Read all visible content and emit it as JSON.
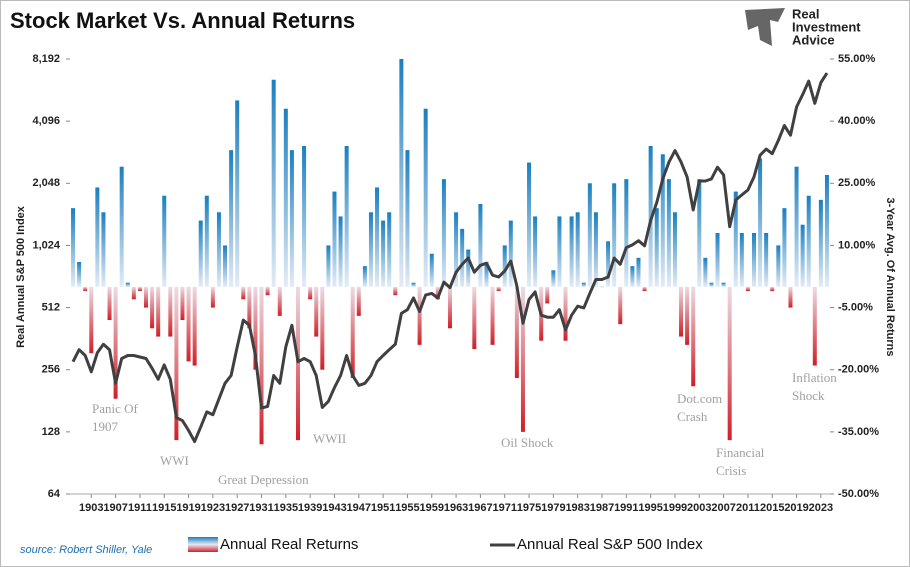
{
  "chart_data": {
    "type": "combo",
    "title": "Stock Market Vs. Annual Returns",
    "source": "source: Robert Shiller, Yale",
    "logo": [
      "Real",
      "Investment",
      "Advice"
    ],
    "y_label": "Real Annual S&P 500 Index",
    "y2_label": "3-Year Avg. Of Annual Returns",
    "x": [
      1900,
      1901,
      1902,
      1903,
      1904,
      1905,
      1906,
      1907,
      1908,
      1909,
      1910,
      1911,
      1912,
      1913,
      1914,
      1915,
      1916,
      1917,
      1918,
      1919,
      1920,
      1921,
      1922,
      1923,
      1924,
      1925,
      1926,
      1927,
      1928,
      1929,
      1930,
      1931,
      1932,
      1933,
      1934,
      1935,
      1936,
      1937,
      1938,
      1939,
      1940,
      1941,
      1942,
      1943,
      1944,
      1945,
      1946,
      1947,
      1948,
      1949,
      1950,
      1951,
      1952,
      1953,
      1954,
      1955,
      1956,
      1957,
      1958,
      1959,
      1960,
      1961,
      1962,
      1963,
      1964,
      1965,
      1966,
      1967,
      1968,
      1969,
      1970,
      1971,
      1972,
      1973,
      1974,
      1975,
      1976,
      1977,
      1978,
      1979,
      1980,
      1981,
      1982,
      1983,
      1984,
      1985,
      1986,
      1987,
      1988,
      1989,
      1990,
      1991,
      1992,
      1993,
      1994,
      1995,
      1996,
      1997,
      1998,
      1999,
      2000,
      2001,
      2002,
      2003,
      2004,
      2005,
      2006,
      2007,
      2008,
      2009,
      2010,
      2011,
      2012,
      2013,
      2014,
      2015,
      2016,
      2017,
      2018,
      2019,
      2020,
      2021,
      2022,
      2023,
      2024
    ],
    "xlim": [
      1899.5,
      2024.5
    ],
    "xticks": [
      1903,
      1907,
      1911,
      1915,
      1919,
      1923,
      1927,
      1931,
      1935,
      1939,
      1943,
      1947,
      1951,
      1955,
      1959,
      1963,
      1967,
      1971,
      1975,
      1979,
      1983,
      1987,
      1991,
      1995,
      1999,
      2003,
      2007,
      2011,
      2015,
      2019,
      2023
    ],
    "ylim": [
      64,
      8192
    ],
    "ylog": true,
    "yticks": [
      64,
      128,
      256,
      512,
      {
        "value": 1024,
        "label": "1,024"
      },
      {
        "value": 2048,
        "label": "2,048"
      },
      {
        "value": 4096,
        "label": "4,096"
      },
      {
        "value": 8192,
        "label": "8,192"
      }
    ],
    "y2lim": [
      -50,
      55
    ],
    "y2ticks": [
      {
        "value": -50,
        "label": "-50.00%"
      },
      {
        "value": -35,
        "label": "-35.00%"
      },
      {
        "value": -20,
        "label": "-20.00%"
      },
      {
        "value": -5,
        "label": "-5.00%"
      },
      {
        "value": 10,
        "label": "10.00%"
      },
      {
        "value": 25,
        "label": "25.00%"
      },
      {
        "value": 40,
        "label": "40.00%"
      },
      {
        "value": 55,
        "label": "55.00%"
      }
    ],
    "series": [
      {
        "name": "Annual Real Returns",
        "type": "bar",
        "axis": "y2",
        "color": "#1a7fc0",
        "negative_color": "#d01f28",
        "values": [
          19,
          6,
          -1,
          -16,
          24,
          18,
          -8,
          -27,
          29,
          1,
          -3,
          -1,
          -5,
          -10,
          -12,
          22,
          -12,
          -37,
          -8,
          -18,
          -19,
          16,
          22,
          -5,
          18,
          10,
          33,
          45,
          -3,
          -10,
          -20,
          -38,
          -2,
          50,
          -7,
          43,
          33,
          -37,
          34,
          -3,
          -12,
          -20,
          10,
          23,
          17,
          34,
          -22,
          -7,
          5,
          18,
          24,
          16,
          18,
          -2,
          55,
          33,
          1,
          -14,
          43,
          8,
          -3,
          26,
          -10,
          18,
          14,
          9,
          -15,
          20,
          6,
          -14,
          -1,
          10,
          16,
          -22,
          -35,
          30,
          17,
          -13,
          -4,
          4,
          17,
          -13,
          17,
          18,
          1,
          25,
          18,
          0,
          11,
          25,
          -9,
          26,
          5,
          7,
          -1,
          34,
          19,
          32,
          26,
          18,
          -12,
          -14,
          -24,
          26,
          7,
          1,
          13,
          1,
          -37,
          23,
          13,
          -1,
          13,
          31,
          13,
          -1,
          10,
          19,
          -5,
          29,
          15,
          22,
          -19,
          21,
          27
        ]
      },
      {
        "name": "Annual Real S&P 500 Index",
        "type": "line",
        "color": "#404040",
        "values": [
          280,
          320,
          300,
          250,
          310,
          340,
          320,
          220,
          290,
          300,
          300,
          295,
          290,
          260,
          230,
          270,
          230,
          150,
          145,
          130,
          115,
          135,
          160,
          155,
          185,
          220,
          240,
          330,
          445,
          420,
          300,
          167,
          170,
          240,
          220,
          330,
          420,
          280,
          290,
          280,
          240,
          168,
          180,
          210,
          240,
          300,
          240,
          215,
          220,
          240,
          280,
          300,
          320,
          340,
          480,
          500,
          570,
          490,
          590,
          600,
          570,
          680,
          640,
          760,
          830,
          890,
          760,
          820,
          840,
          735,
          720,
          770,
          860,
          650,
          430,
          560,
          610,
          470,
          460,
          460,
          500,
          399,
          470,
          520,
          510,
          600,
          700,
          700,
          720,
          890,
          830,
          1000,
          1030,
          1080,
          1020,
          1350,
          1650,
          2150,
          2590,
          2950,
          2600,
          2200,
          1520,
          2100,
          2100,
          2150,
          2450,
          2250,
          1260,
          1700,
          1800,
          1900,
          2200,
          2800,
          3000,
          2850,
          3300,
          3900,
          3500,
          4800,
          5500,
          6400,
          5000,
          6300,
          7000
        ]
      }
    ],
    "annotations": [
      {
        "lines": [
          "Panic Of",
          "1907"
        ]
      },
      {
        "lines": [
          "WWI"
        ]
      },
      {
        "lines": [
          "Great Depression"
        ]
      },
      {
        "lines": [
          "WWII"
        ]
      },
      {
        "lines": [
          "Oil Shock"
        ]
      },
      {
        "lines": [
          "Dot.com",
          "Crash"
        ]
      },
      {
        "lines": [
          "Financial",
          "Crisis"
        ]
      },
      {
        "lines": [
          "Inflation",
          "Shock"
        ]
      }
    ]
  }
}
